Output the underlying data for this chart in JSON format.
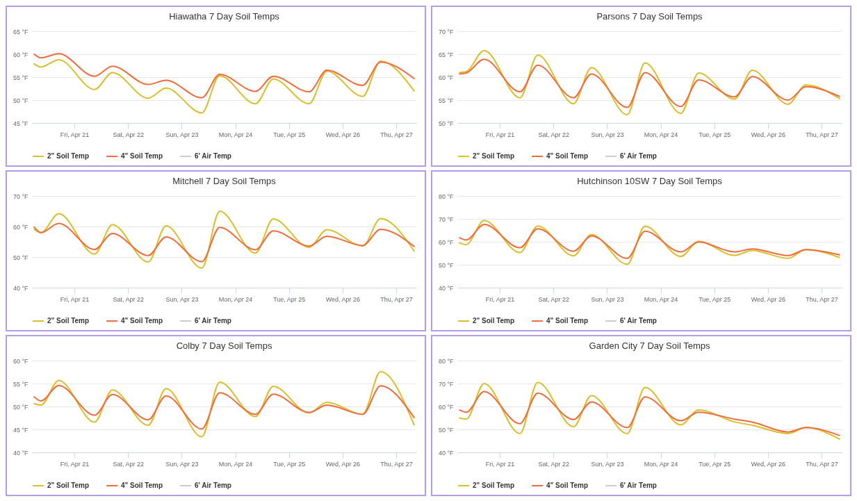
{
  "chart_data": [
    {
      "type": "line",
      "title": "Hiawatha 7 Day Soil Temps",
      "grid": "y",
      "legend": "bottom",
      "marker": "none",
      "xlim": [
        "--04-20T05:00",
        "--04-27T09:00"
      ],
      "xticks": [
        {
          "value": "--04-21",
          "label": "Fri, Apr 21"
        },
        {
          "value": "--04-22",
          "label": "Sat, Apr 22"
        },
        {
          "value": "--04-23",
          "label": "Sun, Apr 23"
        },
        {
          "value": "--04-24",
          "label": "Mon, Apr 24"
        },
        {
          "value": "--04-25",
          "label": "Tue, Apr 25"
        },
        {
          "value": "--04-26",
          "label": "Wed, Apr 26"
        },
        {
          "value": "--04-27",
          "label": "Thu, Apr 27"
        }
      ],
      "ylim": [
        45,
        65
      ],
      "yticks": [
        {
          "value": 45,
          "label": "45 °F"
        },
        {
          "value": 50,
          "label": "50 °F"
        },
        {
          "value": 55,
          "label": "55 °F"
        },
        {
          "value": 60,
          "label": "60 °F"
        },
        {
          "value": 65,
          "label": "65 °F"
        }
      ],
      "x": [
        "--04-20T06:00",
        "--04-20T09:00",
        "--04-20T17:00",
        "--04-21T09:00",
        "--04-21T17:00",
        "--04-22T09:00",
        "--04-22T17:00",
        "--04-23T09:00",
        "--04-23T17:00",
        "--04-24T09:00",
        "--04-24T17:00",
        "--04-25T09:00",
        "--04-25T17:00",
        "--04-26T09:00",
        "--04-26T17:00",
        "--04-27T08:00"
      ],
      "series": [
        {
          "name": "2\" Soil Temp",
          "color": "#d9bf2b",
          "values": [
            57.9,
            57.2,
            58.8,
            52.3,
            56,
            50.4,
            52.6,
            47.2,
            55.3,
            49.2,
            54.6,
            49.2,
            56.3,
            50.8,
            58.5,
            52
          ]
        },
        {
          "name": "4\" Soil Temp",
          "color": "#ef6c3e",
          "values": [
            60,
            59.2,
            60.1,
            55.2,
            57.4,
            53.4,
            54.3,
            50.5,
            55.6,
            51.9,
            55.2,
            51.8,
            56.5,
            53.2,
            58.3,
            54.7
          ]
        },
        {
          "name": "6' Air Temp",
          "color": "#cccccc",
          "values": [
            null,
            null,
            null,
            null,
            null,
            null,
            null,
            null,
            null,
            null,
            null,
            null,
            null,
            null,
            null,
            null
          ]
        }
      ]
    },
    {
      "type": "line",
      "title": "Parsons 7 Day Soil Temps",
      "grid": "y",
      "legend": "bottom",
      "marker": "none",
      "xlim": [
        "--04-20T05:00",
        "--04-27T09:00"
      ],
      "xticks": [
        {
          "value": "--04-21",
          "label": "Fri, Apr 21"
        },
        {
          "value": "--04-22",
          "label": "Sat, Apr 22"
        },
        {
          "value": "--04-23",
          "label": "Sun, Apr 23"
        },
        {
          "value": "--04-24",
          "label": "Mon, Apr 24"
        },
        {
          "value": "--04-25",
          "label": "Tue, Apr 25"
        },
        {
          "value": "--04-26",
          "label": "Wed, Apr 26"
        },
        {
          "value": "--04-27",
          "label": "Thu, Apr 27"
        }
      ],
      "ylim": [
        50,
        70
      ],
      "yticks": [
        {
          "value": 50,
          "label": "50 °F"
        },
        {
          "value": 55,
          "label": "55 °F"
        },
        {
          "value": 60,
          "label": "60 °F"
        },
        {
          "value": 65,
          "label": "65 °F"
        },
        {
          "value": 70,
          "label": "70 °F"
        }
      ],
      "x": [
        "--04-20T06:00",
        "--04-20T09:00",
        "--04-20T17:00",
        "--04-21T09:00",
        "--04-21T17:00",
        "--04-22T09:00",
        "--04-22T17:00",
        "--04-23T09:00",
        "--04-23T17:00",
        "--04-24T09:00",
        "--04-24T17:00",
        "--04-25T09:00",
        "--04-25T17:00",
        "--04-26T09:00",
        "--04-26T17:00",
        "--04-27T08:00"
      ],
      "series": [
        {
          "name": "2\" Soil Temp",
          "color": "#d9bf2b",
          "values": [
            61,
            61.2,
            65.8,
            55.5,
            64.8,
            54.2,
            62.1,
            51.8,
            63.1,
            52.1,
            60.9,
            55.2,
            61.5,
            54.1,
            58.3,
            55.3
          ]
        },
        {
          "name": "4\" Soil Temp",
          "color": "#ef6c3e",
          "values": [
            60.7,
            60.9,
            63.9,
            56.8,
            62.6,
            55.5,
            60.7,
            53.4,
            61,
            53.6,
            59.4,
            55.7,
            60.1,
            55,
            57.9,
            55.8
          ]
        },
        {
          "name": "6' Air Temp",
          "color": "#cccccc",
          "values": [
            null,
            null,
            null,
            null,
            null,
            null,
            null,
            null,
            null,
            null,
            null,
            null,
            null,
            null,
            null,
            null
          ]
        }
      ]
    },
    {
      "type": "line",
      "title": "Mitchell 7 Day Soil Temps",
      "grid": "y",
      "legend": "bottom",
      "marker": "none",
      "xlim": [
        "--04-20T05:00",
        "--04-27T09:00"
      ],
      "xticks": [
        {
          "value": "--04-21",
          "label": "Fri, Apr 21"
        },
        {
          "value": "--04-22",
          "label": "Sat, Apr 22"
        },
        {
          "value": "--04-23",
          "label": "Sun, Apr 23"
        },
        {
          "value": "--04-24",
          "label": "Mon, Apr 24"
        },
        {
          "value": "--04-25",
          "label": "Tue, Apr 25"
        },
        {
          "value": "--04-26",
          "label": "Wed, Apr 26"
        },
        {
          "value": "--04-27",
          "label": "Thu, Apr 27"
        }
      ],
      "ylim": [
        40,
        70
      ],
      "yticks": [
        {
          "value": 40,
          "label": "40 °F"
        },
        {
          "value": 50,
          "label": "50 °F"
        },
        {
          "value": 60,
          "label": "60 °F"
        },
        {
          "value": 70,
          "label": "70 °F"
        }
      ],
      "x": [
        "--04-20T06:00",
        "--04-20T09:00",
        "--04-20T17:00",
        "--04-21T09:00",
        "--04-21T17:00",
        "--04-22T09:00",
        "--04-22T17:00",
        "--04-23T09:00",
        "--04-23T17:00",
        "--04-24T09:00",
        "--04-24T17:00",
        "--04-25T09:00",
        "--04-25T17:00",
        "--04-26T09:00",
        "--04-26T17:00",
        "--04-27T08:00"
      ],
      "series": [
        {
          "name": "2\" Soil Temp",
          "color": "#d9bf2b",
          "values": [
            59.1,
            58,
            64.2,
            51,
            60.6,
            48.4,
            60.2,
            46.4,
            65,
            51.3,
            62.5,
            53.2,
            59,
            53.6,
            62.6,
            52
          ]
        },
        {
          "name": "4\" Soil Temp",
          "color": "#ef6c3e",
          "values": [
            59.8,
            58,
            61,
            52.5,
            57.7,
            50.5,
            56.6,
            48.5,
            59.7,
            52.4,
            58.6,
            53.6,
            56.8,
            53.8,
            59.1,
            53.5
          ]
        },
        {
          "name": "6' Air Temp",
          "color": "#cccccc",
          "values": [
            null,
            null,
            null,
            null,
            null,
            null,
            null,
            null,
            null,
            null,
            null,
            null,
            null,
            null,
            null,
            null
          ]
        }
      ]
    },
    {
      "type": "line",
      "title": "Hutchinson 10SW 7 Day Soil Temps",
      "grid": "y",
      "legend": "bottom",
      "marker": "none",
      "xlim": [
        "--04-20T05:00",
        "--04-27T09:00"
      ],
      "xticks": [
        {
          "value": "--04-21",
          "label": "Fri, Apr 21"
        },
        {
          "value": "--04-22",
          "label": "Sat, Apr 22"
        },
        {
          "value": "--04-23",
          "label": "Sun, Apr 23"
        },
        {
          "value": "--04-24",
          "label": "Mon, Apr 24"
        },
        {
          "value": "--04-25",
          "label": "Tue, Apr 25"
        },
        {
          "value": "--04-26",
          "label": "Wed, Apr 26"
        },
        {
          "value": "--04-27",
          "label": "Thu, Apr 27"
        }
      ],
      "ylim": [
        40,
        80
      ],
      "yticks": [
        {
          "value": 40,
          "label": "40 °F"
        },
        {
          "value": 50,
          "label": "50 °F"
        },
        {
          "value": 60,
          "label": "60 °F"
        },
        {
          "value": 70,
          "label": "70 °F"
        },
        {
          "value": 80,
          "label": "80 °F"
        }
      ],
      "x": [
        "--04-20T06:00",
        "--04-20T09:00",
        "--04-20T17:00",
        "--04-21T09:00",
        "--04-21T17:00",
        "--04-22T09:00",
        "--04-22T17:00",
        "--04-23T09:00",
        "--04-23T17:00",
        "--04-24T09:00",
        "--04-24T17:00",
        "--04-25T09:00",
        "--04-25T17:00",
        "--04-26T09:00",
        "--04-26T17:00",
        "--04-27T08:00"
      ],
      "series": [
        {
          "name": "2\" Soil Temp",
          "color": "#d9bf2b",
          "values": [
            59.5,
            58.8,
            69.3,
            55.3,
            66.9,
            53.9,
            63.2,
            50.2,
            66.8,
            53.6,
            60.2,
            54.1,
            56.2,
            52.8,
            56.6,
            53.2
          ]
        },
        {
          "name": "4\" Soil Temp",
          "color": "#ef6c3e",
          "values": [
            61.8,
            60.8,
            67.6,
            57.4,
            65.7,
            55.9,
            62.6,
            52.8,
            64.6,
            55.6,
            59.9,
            55.6,
            56.9,
            54,
            56.6,
            54.3
          ]
        },
        {
          "name": "6' Air Temp",
          "color": "#cccccc",
          "values": [
            null,
            null,
            null,
            null,
            null,
            null,
            null,
            null,
            null,
            null,
            null,
            null,
            null,
            null,
            null,
            null
          ]
        }
      ]
    },
    {
      "type": "line",
      "title": "Colby 7 Day Soil Temps",
      "grid": "y",
      "legend": "bottom",
      "marker": "none",
      "xlim": [
        "--04-20T05:00",
        "--04-27T09:00"
      ],
      "xticks": [
        {
          "value": "--04-21",
          "label": "Fri, Apr 21"
        },
        {
          "value": "--04-22",
          "label": "Sat, Apr 22"
        },
        {
          "value": "--04-23",
          "label": "Sun, Apr 23"
        },
        {
          "value": "--04-24",
          "label": "Mon, Apr 24"
        },
        {
          "value": "--04-25",
          "label": "Tue, Apr 25"
        },
        {
          "value": "--04-26",
          "label": "Wed, Apr 26"
        },
        {
          "value": "--04-27",
          "label": "Thu, Apr 27"
        }
      ],
      "ylim": [
        40,
        60
      ],
      "yticks": [
        {
          "value": 40,
          "label": "40 °F"
        },
        {
          "value": 45,
          "label": "45 °F"
        },
        {
          "value": 50,
          "label": "50 °F"
        },
        {
          "value": 55,
          "label": "55 °F"
        },
        {
          "value": 60,
          "label": "60 °F"
        }
      ],
      "x": [
        "--04-20T06:00",
        "--04-20T09:00",
        "--04-20T17:00",
        "--04-21T09:00",
        "--04-21T17:00",
        "--04-22T09:00",
        "--04-22T17:00",
        "--04-23T09:00",
        "--04-23T17:00",
        "--04-24T09:00",
        "--04-24T17:00",
        "--04-25T09:00",
        "--04-25T17:00",
        "--04-26T09:00",
        "--04-26T17:00",
        "--04-27T08:00"
      ],
      "series": [
        {
          "name": "2\" Soil Temp",
          "color": "#d9bf2b",
          "values": [
            50.6,
            50.3,
            55.7,
            46.6,
            53.6,
            45.9,
            53.9,
            43.4,
            55.3,
            47.8,
            54.4,
            48.6,
            50.9,
            48.3,
            57.6,
            46
          ]
        },
        {
          "name": "4\" Soil Temp",
          "color": "#ef6c3e",
          "values": [
            52.1,
            51.2,
            54.6,
            48.1,
            52.6,
            47.1,
            52.3,
            45.1,
            53,
            48.3,
            52.7,
            48.7,
            50.3,
            48.3,
            54.5,
            47.6
          ]
        },
        {
          "name": "6' Air Temp",
          "color": "#cccccc",
          "values": [
            null,
            null,
            null,
            null,
            null,
            null,
            null,
            null,
            null,
            null,
            null,
            null,
            null,
            null,
            null,
            null
          ]
        }
      ]
    },
    {
      "type": "line",
      "title": "Garden City 7 Day Soil Temps",
      "grid": "y",
      "legend": "bottom",
      "marker": "none",
      "xlim": [
        "--04-20T05:00",
        "--04-27T09:00"
      ],
      "xticks": [
        {
          "value": "--04-21",
          "label": "Fri, Apr 21"
        },
        {
          "value": "--04-22",
          "label": "Sat, Apr 22"
        },
        {
          "value": "--04-23",
          "label": "Sun, Apr 23"
        },
        {
          "value": "--04-24",
          "label": "Mon, Apr 24"
        },
        {
          "value": "--04-25",
          "label": "Tue, Apr 25"
        },
        {
          "value": "--04-26",
          "label": "Wed, Apr 26"
        },
        {
          "value": "--04-27",
          "label": "Thu, Apr 27"
        }
      ],
      "ylim": [
        40,
        80
      ],
      "yticks": [
        {
          "value": 40,
          "label": "40 °F"
        },
        {
          "value": 50,
          "label": "50 °F"
        },
        {
          "value": 60,
          "label": "60 °F"
        },
        {
          "value": 70,
          "label": "70 °F"
        },
        {
          "value": 80,
          "label": "80 °F"
        }
      ],
      "x": [
        "--04-20T06:00",
        "--04-20T09:00",
        "--04-20T17:00",
        "--04-21T09:00",
        "--04-21T17:00",
        "--04-22T09:00",
        "--04-22T17:00",
        "--04-23T09:00",
        "--04-23T17:00",
        "--04-24T09:00",
        "--04-24T17:00",
        "--04-25T09:00",
        "--04-25T17:00",
        "--04-26T09:00",
        "--04-26T17:00",
        "--04-27T08:00"
      ],
      "series": [
        {
          "name": "2\" Soil Temp",
          "color": "#d9bf2b",
          "values": [
            55,
            54.5,
            70,
            48.2,
            70.5,
            51.2,
            64.8,
            48.2,
            68.3,
            52,
            58.5,
            53.3,
            51.8,
            48.2,
            50.8,
            45.8
          ]
        },
        {
          "name": "4\" Soil Temp",
          "color": "#ef6c3e",
          "values": [
            58.5,
            57.5,
            66.5,
            52.5,
            65.8,
            54.3,
            62,
            50.8,
            64.2,
            53.8,
            57.5,
            54.5,
            53.2,
            48.9,
            50.8,
            47.4
          ]
        },
        {
          "name": "6' Air Temp",
          "color": "#cccccc",
          "values": [
            null,
            null,
            null,
            null,
            null,
            null,
            null,
            null,
            null,
            null,
            null,
            null,
            null,
            null,
            null,
            null
          ]
        }
      ]
    }
  ]
}
